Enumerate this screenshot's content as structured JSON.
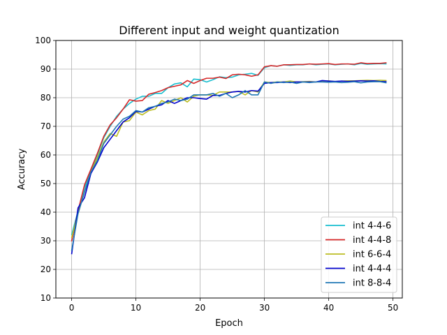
{
  "chart_data": {
    "type": "line",
    "title": "Different input and weight quantization",
    "xlabel": "Epoch",
    "ylabel": "Accuracy",
    "xlim": [
      -2.45,
      51.45
    ],
    "ylim": [
      10,
      100
    ],
    "xticks": [
      0,
      10,
      20,
      30,
      40,
      50
    ],
    "yticks": [
      10,
      20,
      30,
      40,
      50,
      60,
      70,
      80,
      90,
      100
    ],
    "grid": true,
    "legend_position": "lower-right",
    "x": [
      0,
      1,
      2,
      3,
      4,
      5,
      6,
      7,
      8,
      9,
      10,
      11,
      12,
      13,
      14,
      15,
      16,
      17,
      18,
      19,
      20,
      21,
      22,
      23,
      24,
      25,
      26,
      27,
      28,
      29,
      30,
      31,
      32,
      33,
      34,
      35,
      36,
      37,
      38,
      39,
      40,
      41,
      42,
      43,
      44,
      45,
      46,
      47,
      48,
      49
    ],
    "series": [
      {
        "name": "int 4-4-6",
        "color": "#17becf",
        "values": [
          32.0,
          40.5,
          48.5,
          54.5,
          60.0,
          66.0,
          70.0,
          73.5,
          76.0,
          78.0,
          79.5,
          80.5,
          80.5,
          81.5,
          81.5,
          83.5,
          84.8,
          85.2,
          83.8,
          86.5,
          86.3,
          85.5,
          86.3,
          87.3,
          87.0,
          87.2,
          88.0,
          88.2,
          88.5,
          87.8,
          90.5,
          91.2,
          91.0,
          91.5,
          91.3,
          91.5,
          91.5,
          91.8,
          91.5,
          91.7,
          91.8,
          91.5,
          91.7,
          91.8,
          91.5,
          92.0,
          91.7,
          91.8,
          91.9,
          91.8
        ]
      },
      {
        "name": "int 4-4-8",
        "color": "#d62728",
        "values": [
          29.8,
          40.5,
          49.5,
          55.0,
          60.5,
          66.5,
          70.5,
          73.0,
          76.0,
          79.3,
          78.8,
          79.0,
          81.2,
          81.8,
          82.5,
          83.5,
          84.0,
          84.5,
          86.0,
          85.0,
          86.0,
          86.8,
          86.8,
          87.2,
          86.7,
          88.0,
          88.2,
          88.0,
          87.5,
          88.0,
          90.8,
          91.2,
          91.0,
          91.5,
          91.5,
          91.6,
          91.6,
          91.8,
          91.7,
          91.8,
          91.9,
          91.6,
          91.8,
          91.8,
          91.7,
          92.2,
          91.9,
          92.0,
          92.0,
          92.2
        ]
      },
      {
        "name": "int 6-6-4",
        "color": "#bcbd22",
        "values": [
          31.0,
          39.5,
          47.0,
          54.0,
          59.0,
          64.5,
          67.5,
          66.5,
          71.5,
          72.0,
          75.0,
          74.0,
          75.5,
          76.0,
          79.0,
          78.0,
          79.0,
          80.0,
          78.5,
          80.5,
          81.0,
          81.0,
          80.8,
          82.0,
          82.0,
          82.0,
          82.2,
          81.0,
          82.5,
          82.0,
          85.5,
          85.3,
          85.5,
          85.5,
          85.8,
          85.5,
          85.6,
          85.7,
          85.5,
          85.8,
          85.9,
          85.6,
          85.8,
          85.9,
          85.9,
          86.0,
          86.1,
          86.0,
          86.1,
          86.0
        ]
      },
      {
        "name": "int 4-4-4",
        "color": "#0000cc",
        "values": [
          25.3,
          41.5,
          45.0,
          53.5,
          57.5,
          62.5,
          65.5,
          68.5,
          71.5,
          73.0,
          75.2,
          75.0,
          76.0,
          77.0,
          77.5,
          79.0,
          78.0,
          79.0,
          80.0,
          80.0,
          79.7,
          79.5,
          80.8,
          80.8,
          81.5,
          82.0,
          82.2,
          82.0,
          82.5,
          82.3,
          85.0,
          85.3,
          85.3,
          85.5,
          85.3,
          85.5,
          85.5,
          85.5,
          85.5,
          86.0,
          85.8,
          85.7,
          85.8,
          85.7,
          85.8,
          85.9,
          85.8,
          85.9,
          85.7,
          85.6
        ]
      },
      {
        "name": "int 8-8-4",
        "color": "#1f77b4",
        "values": [
          26.5,
          39.5,
          47.0,
          54.0,
          58.0,
          64.0,
          67.0,
          70.0,
          72.5,
          73.5,
          75.5,
          75.0,
          76.5,
          77.0,
          78.0,
          78.5,
          79.5,
          79.0,
          79.5,
          81.0,
          81.0,
          81.0,
          81.5,
          80.5,
          81.5,
          80.0,
          81.0,
          82.5,
          81.0,
          81.0,
          85.5,
          85.0,
          85.5,
          85.3,
          85.5,
          85.0,
          85.5,
          85.3,
          85.5,
          85.5,
          85.4,
          85.5,
          85.3,
          85.4,
          85.6,
          85.2,
          85.5,
          85.6,
          85.6,
          85.2
        ]
      }
    ]
  }
}
